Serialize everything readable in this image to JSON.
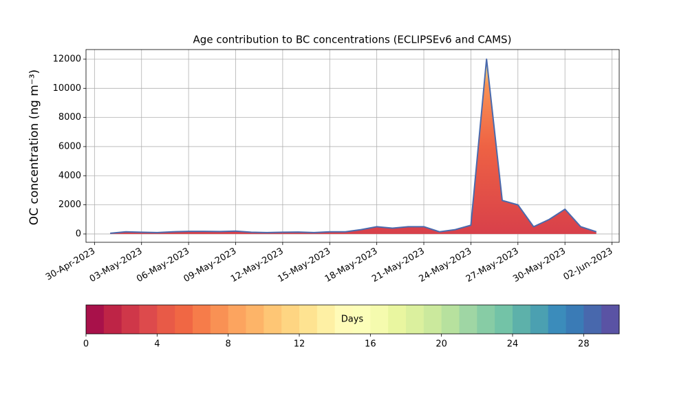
{
  "chart_data": {
    "type": "line",
    "title": "Age contribution to BC concentrations (ECLIPSEv6 and CAMS)",
    "y_label": "OC concentration (ng m⁻³)",
    "x": [
      "2023-05-01",
      "2023-05-02",
      "2023-05-03",
      "2023-05-04",
      "2023-05-05",
      "2023-05-06",
      "2023-05-07",
      "2023-05-08",
      "2023-05-09",
      "2023-05-10",
      "2023-05-11",
      "2023-05-12",
      "2023-05-13",
      "2023-05-14",
      "2023-05-15",
      "2023-05-16",
      "2023-05-17",
      "2023-05-18",
      "2023-05-19",
      "2023-05-20",
      "2023-05-21",
      "2023-05-22",
      "2023-05-23",
      "2023-05-24",
      "2023-05-25",
      "2023-05-26",
      "2023-05-27",
      "2023-05-28",
      "2023-05-29",
      "2023-05-30",
      "2023-05-31",
      "2023-06-01"
    ],
    "series": [
      {
        "color": "#4a6aad",
        "values": [
          50,
          150,
          120,
          100,
          150,
          180,
          180,
          170,
          200,
          120,
          100,
          120,
          130,
          100,
          150,
          150,
          300,
          500,
          400,
          500,
          500,
          150,
          300,
          600,
          12000,
          2300,
          2000,
          500,
          1000,
          1700,
          500,
          150
        ]
      }
    ],
    "xlim": [
      "2023-04-29T11:00",
      "2023-06-02T11:00"
    ],
    "xticks": [
      {
        "value": "2023-04-30",
        "label": "30-Apr-2023"
      },
      {
        "value": "2023-05-03",
        "label": "03-May-2023"
      },
      {
        "value": "2023-05-06",
        "label": "06-May-2023"
      },
      {
        "value": "2023-05-09",
        "label": "09-May-2023"
      },
      {
        "value": "2023-05-12",
        "label": "12-May-2023"
      },
      {
        "value": "2023-05-15",
        "label": "15-May-2023"
      },
      {
        "value": "2023-05-18",
        "label": "18-May-2023"
      },
      {
        "value": "2023-05-21",
        "label": "21-May-2023"
      },
      {
        "value": "2023-05-24",
        "label": "24-May-2023"
      },
      {
        "value": "2023-05-27",
        "label": "27-May-2023"
      },
      {
        "value": "2023-05-30",
        "label": "30-May-2023"
      },
      {
        "value": "2023-06-02",
        "label": "02-Jun-2023"
      }
    ],
    "ylim": [
      -570,
      12660
    ],
    "yticks": [
      0,
      2000,
      4000,
      6000,
      8000,
      10000,
      12000
    ],
    "grid": true,
    "colorbar": {
      "label": "Days",
      "lim": [
        0,
        30
      ],
      "ticks": [
        0,
        4,
        8,
        12,
        16,
        20,
        24,
        28
      ],
      "colors": [
        "#a8114a",
        "#be2446",
        "#cf3749",
        "#dd4a4c",
        "#e85a47",
        "#f06744",
        "#f67c4a",
        "#f99154",
        "#fca45f",
        "#fdb468",
        "#fec675",
        "#fed582",
        "#fee391",
        "#fef0a4",
        "#fffbb8",
        "#fcfeb9",
        "#f5fbae",
        "#e9f6a0",
        "#dbf09e",
        "#cbe99d",
        "#b7e19e",
        "#9fd6a4",
        "#87cca5",
        "#73c3a7",
        "#5db1aa",
        "#4ba0b1",
        "#3b8cbb",
        "#3a7bb6",
        "#4868ad",
        "#5a53a4"
      ]
    }
  }
}
